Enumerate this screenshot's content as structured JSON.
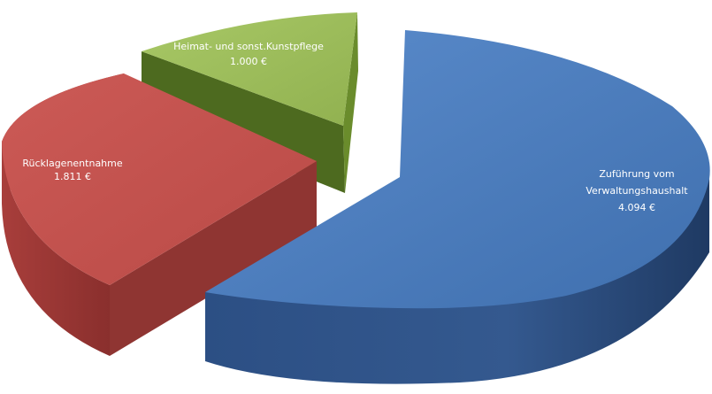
{
  "chart_data": {
    "type": "pie",
    "style": "3d-exploded",
    "slices": [
      {
        "label": "Zuführung vom Verwaltungshaushalt",
        "label_lines": [
          "Zuführung vom",
          "Verwaltungshaushalt"
        ],
        "value_label": "4.094 €",
        "value": 4094,
        "color": "#4f7fbe"
      },
      {
        "label": "Rücklagenentnahme",
        "label_lines": [
          "Rücklagenentnahme"
        ],
        "value_label": "1.811 €",
        "value": 1811,
        "color": "#c0504d"
      },
      {
        "label": "Heimat- und sonst.Kunstpflege",
        "label_lines": [
          "Heimat- und sonst.Kunstpflege"
        ],
        "value_label": "1.000 €",
        "value": 1000,
        "color": "#9bbb59"
      }
    ]
  }
}
